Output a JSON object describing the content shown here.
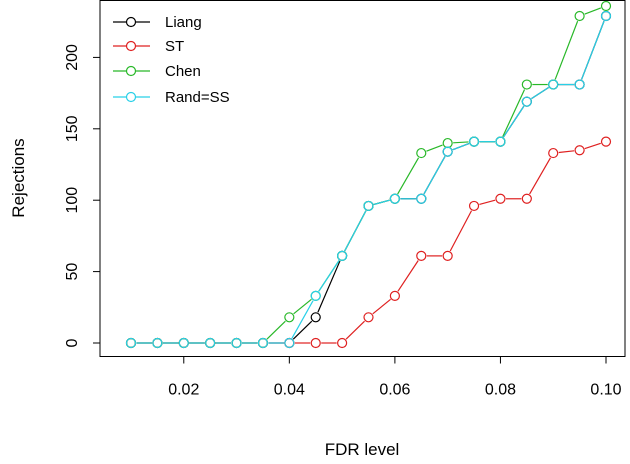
{
  "chart_data": {
    "type": "line",
    "title": "",
    "xlabel": "FDR level",
    "ylabel": "Rejections",
    "xlim": [
      0.01,
      0.1
    ],
    "ylim": [
      0,
      236
    ],
    "x": [
      0.01,
      0.015,
      0.02,
      0.025,
      0.03,
      0.035,
      0.04,
      0.045,
      0.05,
      0.055,
      0.06,
      0.065,
      0.07,
      0.075,
      0.08,
      0.085,
      0.09,
      0.095,
      0.1
    ],
    "xticks": [
      0.02,
      0.04,
      0.06,
      0.08,
      0.1
    ],
    "xtick_labels": [
      "0.02",
      "0.04",
      "0.06",
      "0.08",
      "0.10"
    ],
    "yticks": [
      0,
      50,
      100,
      150,
      200
    ],
    "ytick_labels": [
      "0",
      "50",
      "100",
      "150",
      "200"
    ],
    "grid": false,
    "legend_position": "top-left",
    "marker": "open-circle",
    "series": [
      {
        "name": "Liang",
        "color": "#000000",
        "values": [
          0,
          0,
          0,
          0,
          0,
          0,
          0,
          18,
          61,
          96,
          101,
          101,
          134,
          141,
          141,
          169,
          181,
          181,
          229
        ]
      },
      {
        "name": "ST",
        "color": "#df2020",
        "values": [
          0,
          0,
          0,
          0,
          0,
          0,
          0,
          0,
          0,
          18,
          33,
          61,
          61,
          96,
          101,
          101,
          133,
          135,
          141
        ]
      },
      {
        "name": "Chen",
        "color": "#28b828",
        "values": [
          0,
          0,
          0,
          0,
          0,
          0,
          18,
          33,
          61,
          96,
          101,
          133,
          140,
          141,
          141,
          181,
          181,
          229,
          236
        ]
      },
      {
        "name": "Rand=SS",
        "color": "#28d0e8",
        "values": [
          0,
          0,
          0,
          0,
          0,
          0,
          0,
          33,
          61,
          96,
          101,
          101,
          134,
          141,
          141,
          169,
          181,
          181,
          229
        ]
      }
    ]
  }
}
